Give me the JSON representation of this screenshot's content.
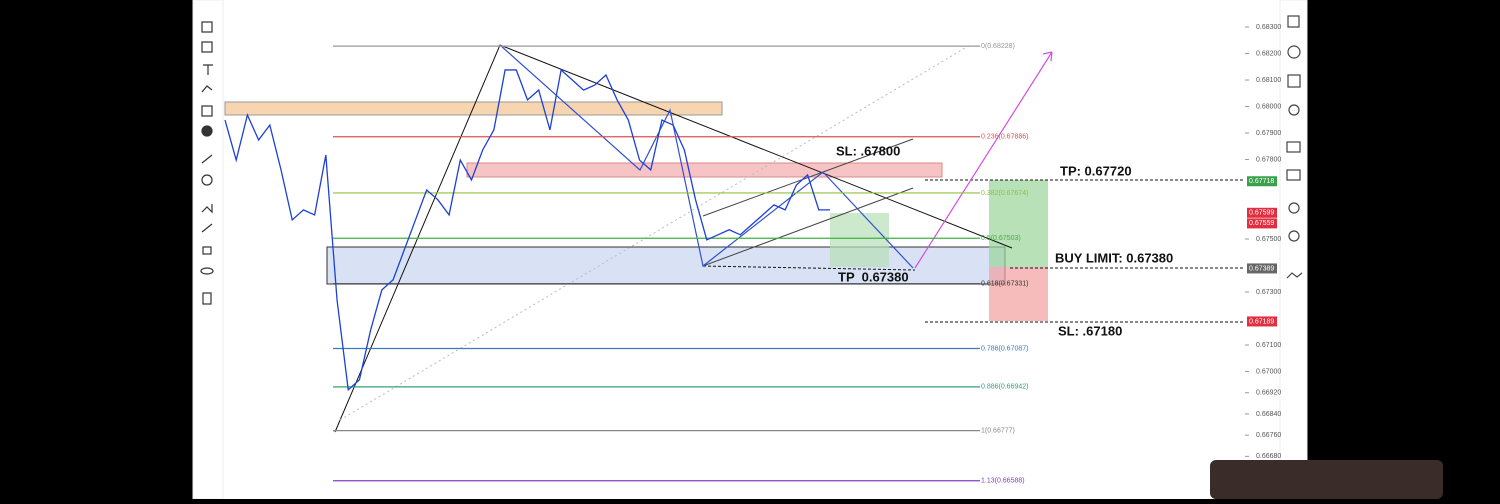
{
  "chart_data": {
    "type": "line",
    "categories": [
      null,
      null,
      null,
      null,
      null,
      null,
      null,
      null,
      null,
      null,
      null,
      null,
      null,
      null,
      null,
      null,
      null,
      null,
      null,
      null,
      null,
      null,
      null,
      null,
      null,
      null,
      null,
      null,
      null,
      null,
      null,
      null,
      null,
      null,
      null,
      null,
      null,
      null,
      null,
      null,
      null,
      null,
      null,
      null,
      null,
      null,
      null,
      null,
      null,
      null,
      null,
      null,
      null,
      null,
      null
    ],
    "series": [
      {
        "color": "#1e40d8",
        "values": [
          0.67949,
          0.67798,
          0.67968,
          0.67874,
          0.6793,
          0.67761,
          0.67572,
          0.6761,
          0.67591,
          0.67817,
          0.6727,
          0.66931,
          0.66969,
          0.67157,
          0.67308,
          0.67346,
          0.67459,
          0.67572,
          0.67685,
          0.67648,
          0.67591,
          0.67798,
          0.67723,
          0.67836,
          0.67912,
          0.68138,
          0.68138,
          0.68025,
          0.68062,
          0.67912,
          0.68138,
          0.681,
          0.68062,
          0.68081,
          0.68119,
          0.68025,
          0.67949,
          0.67798,
          0.67761,
          0.67949,
          0.6793,
          0.67836,
          0.67648,
          0.67497,
          0.67516,
          0.67535,
          0.67516,
          0.67554,
          0.67591,
          0.67629,
          0.6761,
          0.67704,
          0.67742,
          0.6761,
          0.6761
        ]
      }
    ],
    "ylim": [
      0.66519,
      0.68402
    ],
    "yticks": [
      {
        "value": 0.683,
        "label": "0.68300"
      },
      {
        "value": 0.682,
        "label": "0.68200"
      },
      {
        "value": 0.681,
        "label": "0.68100"
      },
      {
        "value": 0.68,
        "label": "0.68000"
      },
      {
        "value": 0.679,
        "label": "0.67900"
      },
      {
        "value": 0.678,
        "label": "0.67800"
      },
      {
        "value": 0.675,
        "label": "0.67500"
      },
      {
        "value": 0.673,
        "label": "0.67300"
      },
      {
        "value": 0.671,
        "label": "0.67100"
      },
      {
        "value": 0.67,
        "label": "0.67000"
      },
      {
        "value": 0.6692,
        "label": "0.66920"
      },
      {
        "value": 0.6684,
        "label": "0.66840"
      },
      {
        "value": 0.6676,
        "label": "0.66760"
      },
      {
        "value": 0.6668,
        "label": "0.66680"
      }
    ],
    "fib_levels": [
      {
        "value": 0.68228,
        "label": "0(0.68228)",
        "color": "#999999"
      },
      {
        "value": 0.67886,
        "label": "0.236(0.67886)",
        "color": "#e05050"
      },
      {
        "value": 0.67674,
        "label": "0.382(0.67674)",
        "color": "#90c040"
      },
      {
        "value": 0.67503,
        "label": "0.5(0.67503)",
        "color": "#40b040"
      },
      {
        "value": 0.67331,
        "label": "0.618(0.67331)",
        "color": "#333333"
      },
      {
        "value": 0.67087,
        "label": "0.786(0.67087)",
        "color": "#3a7bbf"
      },
      {
        "value": 0.66942,
        "label": "0.886(0.66942)",
        "color": "#30a080"
      },
      {
        "value": 0.66777,
        "label": "1(0.66777)",
        "color": "#888888"
      },
      {
        "value": 0.66588,
        "label": "1.13(0.66588)",
        "color": "#8040c0"
      }
    ],
    "axis_badges": [
      {
        "value": 0.67718,
        "label": "0.67718",
        "color": "#3aa04a"
      },
      {
        "value": 0.67599,
        "label": "0.67599",
        "color": "#e03040"
      },
      {
        "value": 0.67559,
        "label": "0.67559",
        "color": "#e03040"
      },
      {
        "value": 0.67389,
        "label": "0.67389",
        "color": "#666666"
      },
      {
        "value": 0.67189,
        "label": "0.67189",
        "color": "#e03040"
      }
    ],
    "annotations": [
      "SL: .67800",
      "TP: 0.67720",
      "BUY LIMIT: 0.67380",
      "TP  0.67380",
      "SL: .67180"
    ]
  }
}
